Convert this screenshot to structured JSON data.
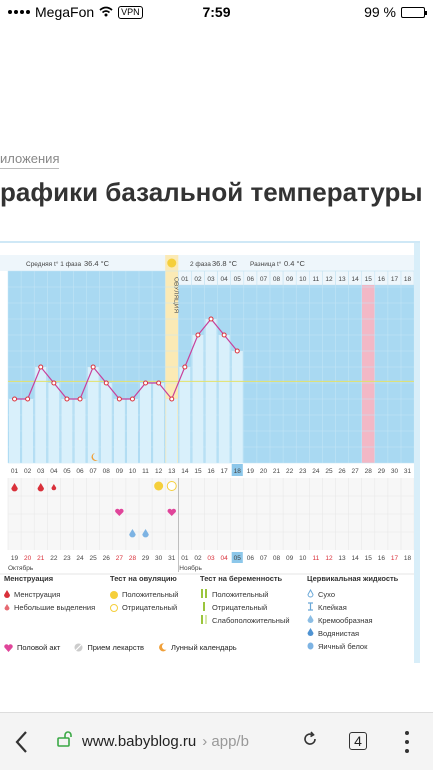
{
  "status_bar": {
    "carrier": "MegaFon",
    "vpn": "VPN",
    "time": "7:59",
    "battery": "99 %"
  },
  "page": {
    "breadcrumb": "иложения",
    "title": "рафики базальной температуры"
  },
  "chart": {
    "header": {
      "phase1_label": "Средняя t° 1 фаза",
      "phase1_value": "36.4 °C",
      "phase2_label": "2 фаза",
      "phase2_value": "36.8 °C",
      "diff_label": "Разница t°",
      "diff_value": "0.4 °C"
    },
    "ovulation_label": "ОВУЛЯЦИЯ",
    "month1": "Октябрь",
    "month2": "Ноябрь"
  },
  "chart_data": {
    "type": "line",
    "days": [
      "01",
      "02",
      "03",
      "04",
      "05",
      "06",
      "07",
      "08",
      "09",
      "10",
      "11",
      "12",
      "13",
      "14",
      "15",
      "16",
      "17",
      "18",
      "19",
      "20",
      "21",
      "22",
      "23",
      "24",
      "25",
      "26",
      "27",
      "28",
      "29",
      "30",
      "31"
    ],
    "dates": [
      "19",
      "20",
      "21",
      "22",
      "23",
      "24",
      "25",
      "26",
      "27",
      "28",
      "29",
      "30",
      "31",
      "01",
      "02",
      "03",
      "04",
      "05",
      "06",
      "07",
      "08",
      "09",
      "10",
      "11",
      "12",
      "13",
      "14",
      "15",
      "16",
      "17",
      "18"
    ],
    "cycle_phase2_days": [
      "01",
      "02",
      "03",
      "04",
      "05",
      "06",
      "07",
      "08",
      "09",
      "10",
      "11",
      "12",
      "13",
      "14",
      "15",
      "16",
      "17",
      "18"
    ],
    "temperature_levels": [
      0,
      1,
      2,
      3,
      4,
      5,
      6,
      7,
      8,
      9,
      10,
      11,
      12
    ],
    "values": [
      4,
      4,
      6,
      5,
      4,
      4,
      6,
      5,
      4,
      4,
      5,
      5,
      4,
      6,
      8,
      9,
      8,
      7,
      null,
      null,
      null,
      null,
      null,
      null,
      null,
      null,
      null,
      null,
      null,
      null,
      null
    ],
    "coverline": 5.1,
    "ovulation_day": "13",
    "highlight_day": "28",
    "current_day": "18",
    "red_dates": [
      "20",
      "21",
      "27",
      "28",
      "03",
      "04",
      "11",
      "12",
      "17"
    ]
  },
  "legend": {
    "menstruation": {
      "title": "Менструация",
      "items": [
        "Менструация",
        "Небольшие выделения"
      ]
    },
    "ovulation_test": {
      "title": "Тест на овуляцию",
      "items": [
        "Положительный",
        "Отрицательный"
      ]
    },
    "pregnancy_test": {
      "title": "Тест на беременность",
      "items": [
        "Положительный",
        "Отрицательный",
        "Слабоположительный"
      ]
    },
    "cervical": {
      "title": "Цервикальная жидкость",
      "items": [
        "Сухо",
        "Клейкая",
        "Кремообразная",
        "Водянистая",
        "Яичный белок"
      ]
    },
    "bottom": [
      "Половой акт",
      "Прием лекарств",
      "Лунный календарь"
    ]
  },
  "browser": {
    "host": "www.babyblog.ru",
    "path": "› app/b",
    "tabs_count": "4"
  },
  "colors": {
    "chart_bg": "#a9d9f2",
    "bar": "#d9f0fb",
    "ovulation": "#fbeab5",
    "highlight": "#f2b8c6",
    "line": "#c8419b",
    "accent_red": "#d9303a"
  }
}
